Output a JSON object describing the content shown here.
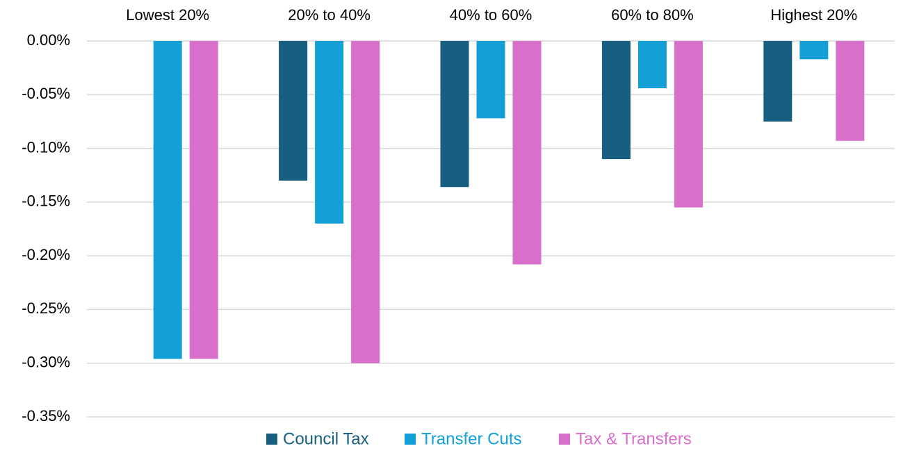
{
  "chart_data": {
    "type": "bar",
    "categories": [
      "Lowest 20%",
      "20% to 40%",
      "40% to 60%",
      "60% to 80%",
      "Highest 20%"
    ],
    "series": [
      {
        "name": "Council Tax",
        "color": "#175f80",
        "values": [
          0,
          -0.13,
          -0.136,
          -0.11,
          -0.075
        ]
      },
      {
        "name": "Transfer Cuts",
        "color": "#13a0d6",
        "values": [
          -0.296,
          -0.17,
          -0.072,
          -0.044,
          -0.017
        ]
      },
      {
        "name": "Tax & Transfers",
        "color": "#d76fcb",
        "values": [
          -0.296,
          -0.3,
          -0.208,
          -0.155,
          -0.093
        ]
      }
    ],
    "ylim": [
      -0.35,
      0
    ],
    "yticks": [
      {
        "value": 0,
        "label": "0.00%"
      },
      {
        "value": -0.05,
        "label": "-0.05%"
      },
      {
        "value": -0.1,
        "label": "-0.10%"
      },
      {
        "value": -0.15,
        "label": "-0.15%"
      },
      {
        "value": -0.2,
        "label": "-0.20%"
      },
      {
        "value": -0.25,
        "label": "-0.25%"
      },
      {
        "value": -0.3,
        "label": "-0.30%"
      },
      {
        "value": -0.35,
        "label": "-0.35%"
      }
    ],
    "grid": true,
    "legend": "bottom"
  }
}
